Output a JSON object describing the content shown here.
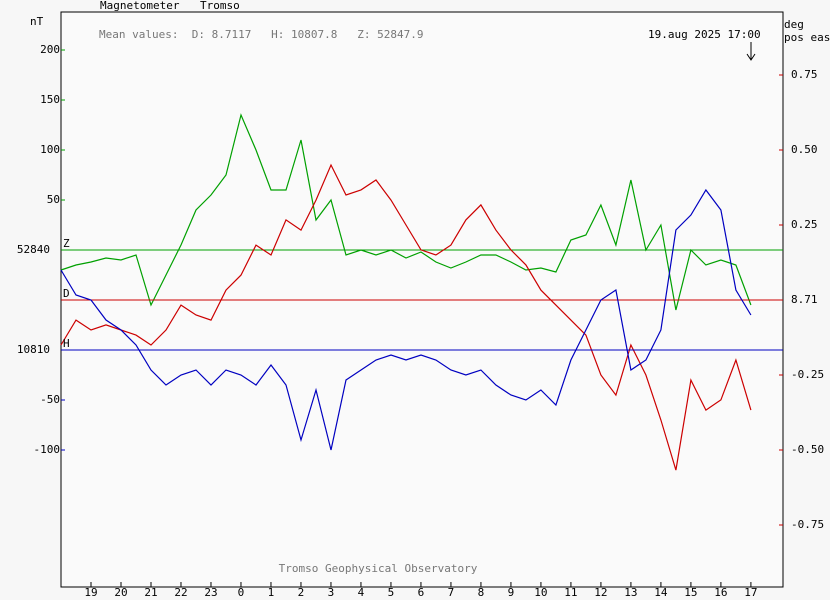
{
  "chart_data": {
    "type": "line",
    "header": [
      "Magnetometer",
      "Tromso"
    ],
    "mean_values": "Mean values:  D: 8.7117   H: 10807.8   Z: 52847.9",
    "timestamp": "19.aug 2025 17:00",
    "footer": "Tromso Geophysical Observatory",
    "left_unit": "nT",
    "right_unit": [
      "deg",
      "pos east"
    ],
    "xlim": [
      18,
      42.07
    ],
    "xticks": [
      19,
      20,
      21,
      22,
      23,
      {
        "value": 24,
        "label": "0"
      },
      {
        "value": 25,
        "label": "1"
      },
      {
        "value": 26,
        "label": "2"
      },
      {
        "value": 27,
        "label": "3"
      },
      {
        "value": 28,
        "label": "4"
      },
      {
        "value": 29,
        "label": "5"
      },
      {
        "value": 30,
        "label": "6"
      },
      {
        "value": 31,
        "label": "7"
      },
      {
        "value": 32,
        "label": "8"
      },
      {
        "value": 33,
        "label": "9"
      },
      {
        "value": 34,
        "label": "10"
      },
      {
        "value": 35,
        "label": "11"
      },
      {
        "value": 36,
        "label": "12"
      },
      {
        "value": 37,
        "label": "13"
      },
      {
        "value": 38,
        "label": "14"
      },
      {
        "value": 39,
        "label": "15"
      },
      {
        "value": 40,
        "label": "16"
      },
      {
        "value": 41,
        "label": "17"
      }
    ],
    "x": [
      18,
      18.5,
      19,
      19.5,
      20,
      20.5,
      21,
      21.5,
      22,
      22.5,
      23,
      23.5,
      24,
      24.5,
      25,
      25.5,
      26,
      26.5,
      27,
      27.5,
      28,
      28.5,
      29,
      29.5,
      30,
      30.5,
      31,
      31.5,
      32,
      32.5,
      33,
      33.5,
      34,
      34.5,
      35,
      35.5,
      36,
      36.5,
      37,
      37.5,
      38,
      38.5,
      39,
      39.5,
      40,
      40.5,
      41
    ],
    "series": [
      {
        "name": "Z",
        "color": "#00a000",
        "side": "left",
        "ylim": [
          52503,
          53078
        ],
        "yticks": [
          {
            "value": 53040,
            "label": "200"
          },
          {
            "value": 52990,
            "label": "150"
          },
          {
            "value": 52940,
            "label": "100"
          },
          {
            "value": 52890,
            "label": "50"
          },
          52840
        ],
        "values": [
          52820,
          52825,
          52828,
          52832,
          52830,
          52835,
          52785,
          52815,
          52845,
          52880,
          52895,
          52915,
          52975,
          52940,
          52900,
          52900,
          52950,
          52870,
          52890,
          52835,
          52840,
          52835,
          52840,
          52832,
          52838,
          52828,
          52822,
          52828,
          52835,
          52835,
          52828,
          52820,
          52822,
          52818,
          52850,
          52855,
          52885,
          52845,
          52910,
          52840,
          52865,
          52780,
          52840,
          52825,
          52830,
          52825,
          52785
        ]
      },
      {
        "name": "D",
        "color": "#cc0000",
        "side": "right",
        "ylim": [
          7.7533,
          9.67
        ],
        "yticks": [
          {
            "value": 9.46,
            "label": "0.75"
          },
          {
            "value": 9.21,
            "label": "0.50"
          },
          {
            "value": 8.96,
            "label": "0.25"
          },
          8.71,
          {
            "value": 8.46,
            "label": "-0.25"
          },
          {
            "value": 8.21,
            "label": "-0.50"
          },
          {
            "value": 7.96,
            "label": "-0.75"
          }
        ],
        "values": [
          8.56,
          8.643,
          8.61,
          8.627,
          8.61,
          8.593,
          8.56,
          8.61,
          8.693,
          8.66,
          8.643,
          8.743,
          8.793,
          8.893,
          8.86,
          8.977,
          8.943,
          9.043,
          9.16,
          9.06,
          9.077,
          9.11,
          9.043,
          8.96,
          8.877,
          8.86,
          8.893,
          8.977,
          9.027,
          8.943,
          8.877,
          8.827,
          8.743,
          8.693,
          8.643,
          8.593,
          8.46,
          8.393,
          8.56,
          8.46,
          8.31,
          8.143,
          8.443,
          8.343,
          8.377,
          8.51,
          8.343
        ]
      },
      {
        "name": "H",
        "color": "#0000c0",
        "side": "left",
        "ylim": [
          10573,
          11148
        ],
        "yticks": [
          10810,
          {
            "value": 10760,
            "label": "-50"
          },
          {
            "value": 10710,
            "label": "-100"
          }
        ],
        "values": [
          10890,
          10865,
          10860,
          10840,
          10830,
          10815,
          10790,
          10775,
          10785,
          10790,
          10775,
          10790,
          10785,
          10775,
          10795,
          10775,
          10720,
          10770,
          10710,
          10780,
          10790,
          10800,
          10805,
          10800,
          10805,
          10800,
          10790,
          10785,
          10790,
          10775,
          10765,
          10760,
          10770,
          10755,
          10800,
          10830,
          10860,
          10870,
          10790,
          10800,
          10830,
          10930,
          10945,
          10970,
          10950,
          10870,
          10845
        ]
      }
    ]
  }
}
